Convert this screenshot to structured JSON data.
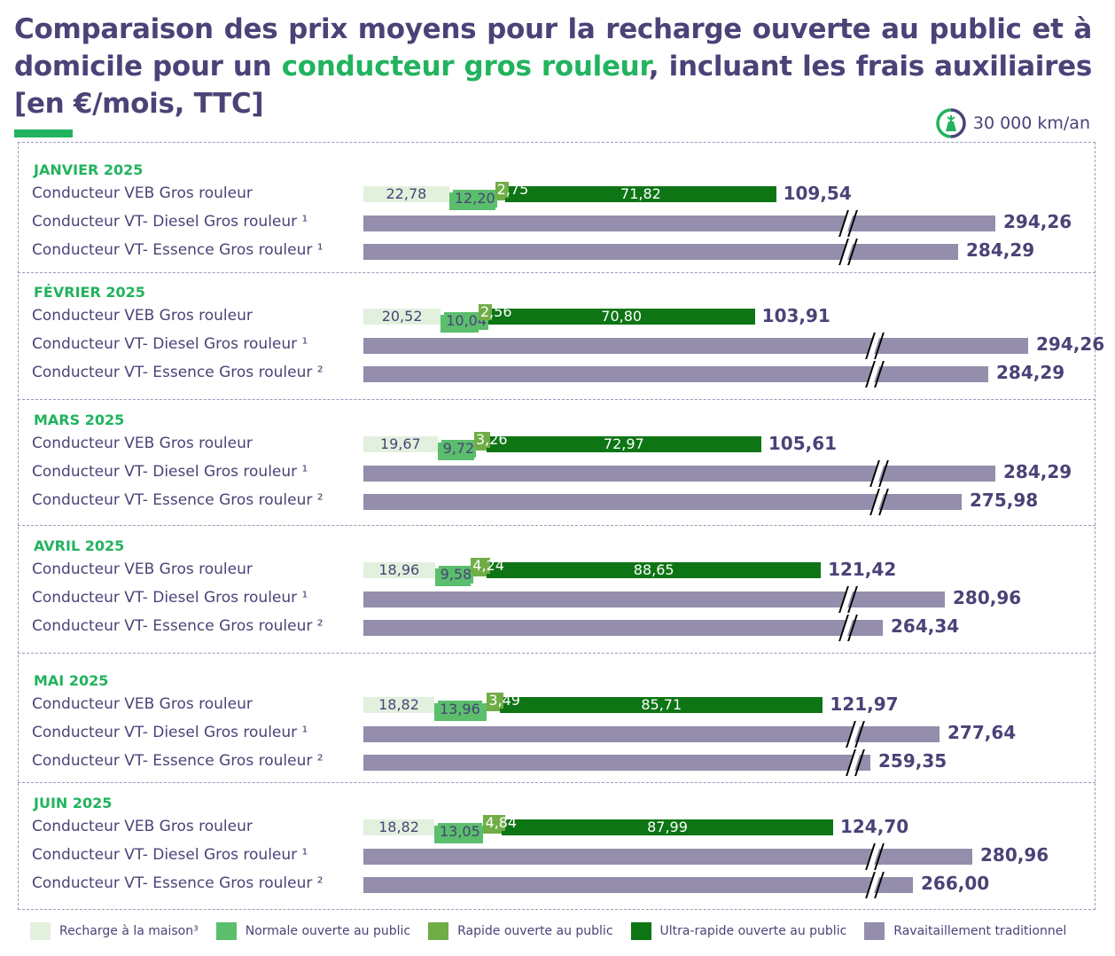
{
  "header": {
    "title_parts": [
      {
        "text": "Comparaison des prix moyens pour la recharge ouverte au public  et à domicile pour un ",
        "highlight": false
      },
      {
        "text": "conducteur gros rouleur",
        "highlight": true
      },
      {
        "text": ", incluant les frais auxiliaires  [en €/mois, TTC]",
        "highlight": false
      }
    ],
    "mileage": "30 000 km/an",
    "mileage_icon": "electric-car-gauge-icon"
  },
  "colors": {
    "title": "#4a4377",
    "accent_green": "#22b35e",
    "home": "#e2f1de",
    "normal": "#5bbe6c",
    "rapid": "#70ad47",
    "ultra": "#0e7515",
    "traditional": "#948dab"
  },
  "chart_data": {
    "type": "bar",
    "orientation": "horizontal-stacked",
    "title": "Comparaison des prix moyens pour la recharge ouverte au public et à domicile pour un conducteur gros rouleur, incluant les frais auxiliaires [en €/mois, TTC]",
    "unit": "€/mois, TTC",
    "axis_break": true,
    "legend_position": "bottom",
    "series": [
      {
        "key": "home",
        "name": "Recharge à la maison³"
      },
      {
        "key": "normal",
        "name": "Normale ouverte au public"
      },
      {
        "key": "rapid",
        "name": "Rapide ouverte au public"
      },
      {
        "key": "ultra",
        "name": "Ultra-rapide ouverte au public"
      },
      {
        "key": "traditional",
        "name": "Ravaitaillement traditionnel"
      }
    ],
    "groups": [
      {
        "month": "JANVIER 2025",
        "rows": [
          {
            "label": "Conducteur VEB Gros rouleur",
            "type": "ev",
            "home": "22,78",
            "normal": "12,20",
            "rapid": "2,75",
            "ultra": "71,82",
            "total": "109,54"
          },
          {
            "label": "Conducteur VT- Diesel Gros rouleur ¹",
            "type": "ice",
            "total": "294,26"
          },
          {
            "label": "Conducteur VT- Essence Gros rouleur ¹",
            "type": "ice",
            "total": "284,29"
          }
        ]
      },
      {
        "month": "FÉVRIER 2025",
        "rows": [
          {
            "label": "Conducteur VEB Gros rouleur",
            "type": "ev",
            "home": "20,52",
            "normal": "10,04",
            "rapid": "2,56",
            "ultra": "70,80",
            "total": "103,91"
          },
          {
            "label": "Conducteur VT- Diesel Gros rouleur ¹",
            "type": "ice",
            "total": "294,26"
          },
          {
            "label": "Conducteur VT- Essence Gros rouleur ²",
            "type": "ice",
            "total": "284,29"
          }
        ]
      },
      {
        "month": "MARS 2025",
        "rows": [
          {
            "label": "Conducteur VEB Gros rouleur",
            "type": "ev",
            "home": "19,67",
            "normal": "9,72",
            "rapid": "3,26",
            "ultra": "72,97",
            "total": "105,61"
          },
          {
            "label": "Conducteur VT- Diesel Gros rouleur ¹",
            "type": "ice",
            "total": "284,29"
          },
          {
            "label": "Conducteur VT- Essence Gros rouleur ²",
            "type": "ice",
            "total": "275,98"
          }
        ]
      },
      {
        "month": "AVRIL 2025",
        "rows": [
          {
            "label": "Conducteur VEB Gros rouleur",
            "type": "ev",
            "home": "18,96",
            "normal": "9,58",
            "rapid": "4,24",
            "ultra": "88,65",
            "total": "121,42"
          },
          {
            "label": "Conducteur VT- Diesel Gros rouleur ¹",
            "type": "ice",
            "total": "280,96"
          },
          {
            "label": "Conducteur VT- Essence Gros rouleur ²",
            "type": "ice",
            "total": "264,34"
          }
        ]
      },
      {
        "month": "MAI 2025",
        "rows": [
          {
            "label": "Conducteur VEB Gros rouleur",
            "type": "ev",
            "home": "18,82",
            "normal": "13,96",
            "rapid": "3,49",
            "ultra": "85,71",
            "total": "121,97"
          },
          {
            "label": "Conducteur VT- Diesel Gros rouleur ¹",
            "type": "ice",
            "total": "277,64"
          },
          {
            "label": "Conducteur VT- Essence Gros rouleur ²",
            "type": "ice",
            "total": "259,35"
          }
        ]
      },
      {
        "month": "JUIN 2025",
        "rows": [
          {
            "label": "Conducteur VEB Gros rouleur",
            "type": "ev",
            "home": "18,82",
            "normal": "13,05",
            "rapid": "4,84",
            "ultra": "87,99",
            "total": "124,70"
          },
          {
            "label": "Conducteur VT- Diesel Gros rouleur ¹",
            "type": "ice",
            "total": "280,96"
          },
          {
            "label": "Conducteur VT- Essence Gros rouleur ²",
            "type": "ice",
            "total": "266,00"
          }
        ]
      }
    ]
  }
}
